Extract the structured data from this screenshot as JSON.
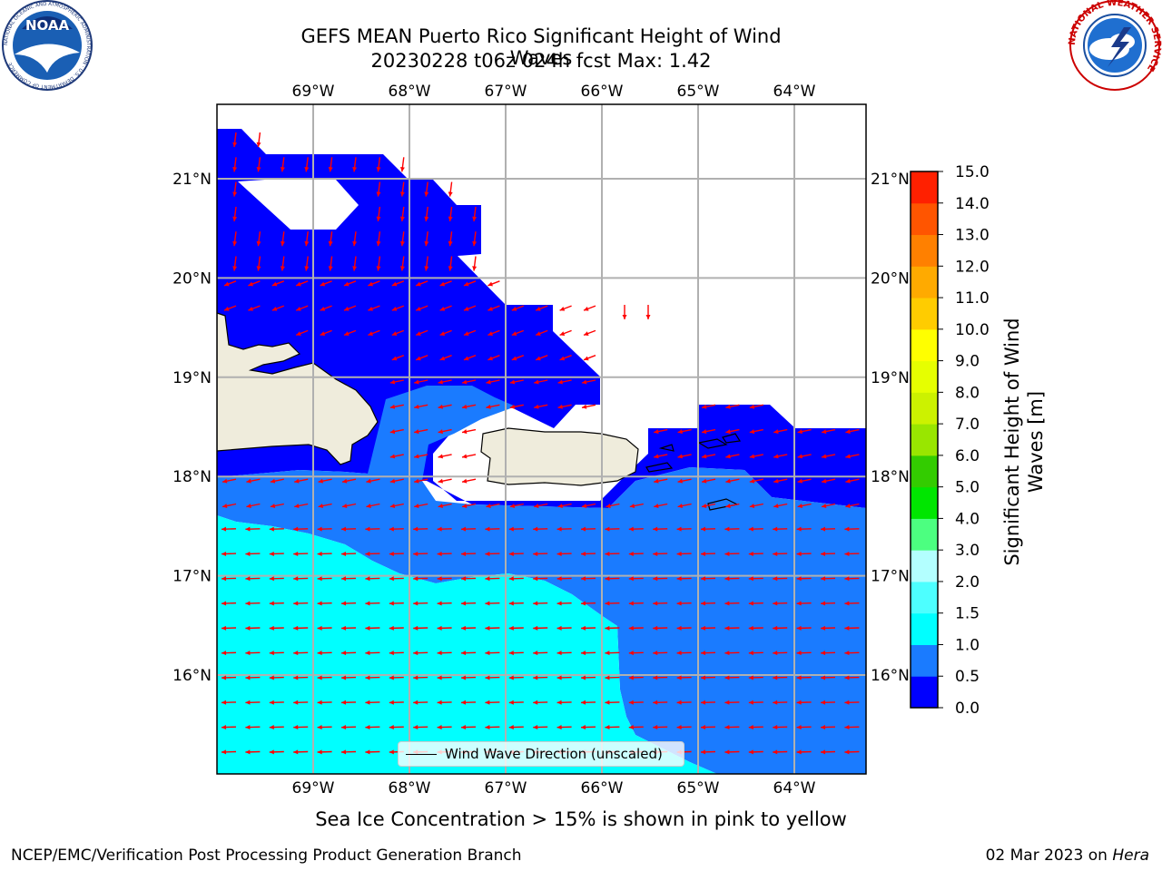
{
  "header": {
    "title_line1": "GEFS MEAN Puerto Rico Significant Height of Wind Waves",
    "title_line2": "20230228 t06z 024h fcst   Max: 1.42"
  },
  "logos": {
    "noaa_text": "NOAA",
    "noaa_ring": "NATIONAL OCEANIC AND ATMOSPHERIC ADMINISTRATION · U.S. DEPARTMENT OF COMMERCE",
    "nws_ring": "NATIONAL WEATHER SERVICE"
  },
  "map": {
    "lon_labels": [
      "69°W",
      "68°W",
      "67°W",
      "66°W",
      "65°W",
      "64°W"
    ],
    "lat_labels": [
      "21°N",
      "20°N",
      "19°N",
      "18°N",
      "17°N",
      "16°N"
    ],
    "lon_values": [
      -69,
      -68,
      -67,
      -66,
      -65,
      -64
    ],
    "lat_values": [
      21,
      20,
      19,
      18,
      17,
      16
    ],
    "extent": {
      "lon": [
        -70,
        -63.25
      ],
      "lat": [
        15.0,
        21.75
      ]
    },
    "field_colors": {
      "ocean_low": "#0000ff",
      "ocean_mid": "#1a7bff",
      "ocean_high": "#00ffff",
      "land": "#efecdc",
      "arrow": "#ff0000"
    },
    "legend_label": "Wind Wave Direction (unscaled)"
  },
  "colorbar": {
    "label": "Significant Height of Wind Waves [m]",
    "ticks": [
      "0.0",
      "0.5",
      "1.0",
      "1.5",
      "2.0",
      "3.0",
      "4.0",
      "5.0",
      "6.0",
      "7.0",
      "8.0",
      "9.0",
      "10.0",
      "11.0",
      "12.0",
      "13.0",
      "14.0",
      "15.0"
    ],
    "colors": [
      "#0000ff",
      "#1a7bff",
      "#00ffff",
      "#4dffff",
      "#b3ffff",
      "#4cff80",
      "#00e600",
      "#33cc00",
      "#99e600",
      "#ccf200",
      "#e6ff00",
      "#ffff00",
      "#ffcc00",
      "#ffaa00",
      "#ff8000",
      "#ff5500",
      "#ff2000"
    ]
  },
  "notes": {
    "ice": "Sea Ice Concentration > 15% is shown in pink to yellow",
    "footer_left": "NCEP/EMC/Verification Post Processing Product Generation Branch",
    "footer_date": "02 Mar 2023 on ",
    "footer_machine": "Hera"
  }
}
